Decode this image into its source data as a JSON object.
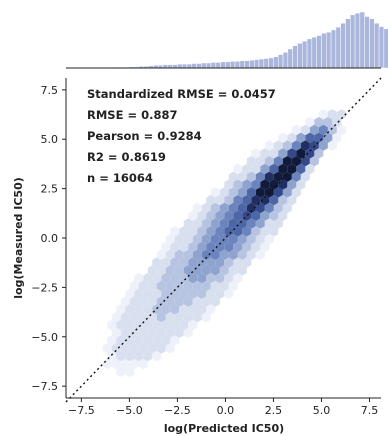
{
  "chart_data": {
    "type": "scatter",
    "subtype": "hexbin-joint-plot",
    "xlabel": "log(Predicted IC50)",
    "ylabel": "log(Measured IC50)",
    "xlim": [
      -8.3,
      8.1
    ],
    "ylim": [
      -8.1,
      8.1
    ],
    "x_ticks": [
      -7.5,
      -5.0,
      -2.5,
      0.0,
      2.5,
      5.0,
      7.5
    ],
    "y_ticks": [
      -7.5,
      -5.0,
      -2.5,
      0.0,
      2.5,
      5.0,
      7.5
    ],
    "x_tick_labels": [
      "−7.5",
      "−5.0",
      "−2.5",
      "0.0",
      "2.5",
      "5.0",
      "7.5"
    ],
    "y_tick_labels": [
      "−7.5",
      "−5.0",
      "−2.5",
      "0.0",
      "2.5",
      "5.0",
      "7.5"
    ],
    "annotations": [
      "Standardized RMSE = 0.0457",
      "RMSE = 0.887",
      "Pearson = 0.9284",
      "R2 = 0.8619",
      "n = 16064"
    ],
    "reference_line": {
      "style": "dotted",
      "from": [
        -8.3,
        -8.3
      ],
      "to": [
        8.1,
        8.1
      ]
    },
    "marginal_histogram_x": {
      "bin_start": -6.0,
      "bin_width": 0.25,
      "counts": [
        1,
        1,
        1,
        1,
        2,
        2,
        3,
        3,
        4,
        5,
        5,
        6,
        6,
        6,
        7,
        7,
        7,
        8,
        8,
        9,
        9,
        10,
        10,
        11,
        11,
        12,
        12,
        13,
        13,
        14,
        15,
        16,
        17,
        18,
        20,
        24,
        28,
        34,
        40,
        44,
        48,
        52,
        55,
        58,
        62,
        64,
        68,
        73,
        80,
        88,
        95,
        98,
        100,
        92,
        88,
        80,
        74,
        70,
        62,
        58,
        50,
        42,
        32,
        22,
        14,
        8,
        4,
        2
      ]
    },
    "colors": {
      "hex_scale": [
        "#eef1f9",
        "#d8dfef",
        "#b6c3e1",
        "#8fa3cf",
        "#6b84bd",
        "#4c66a6",
        "#33498a",
        "#1f2f63",
        "#111a3b"
      ],
      "histogram_fill": "#aab6dc",
      "histogram_edge": "#ffffff",
      "axis": "#222222",
      "reference_line": "#111111"
    }
  }
}
